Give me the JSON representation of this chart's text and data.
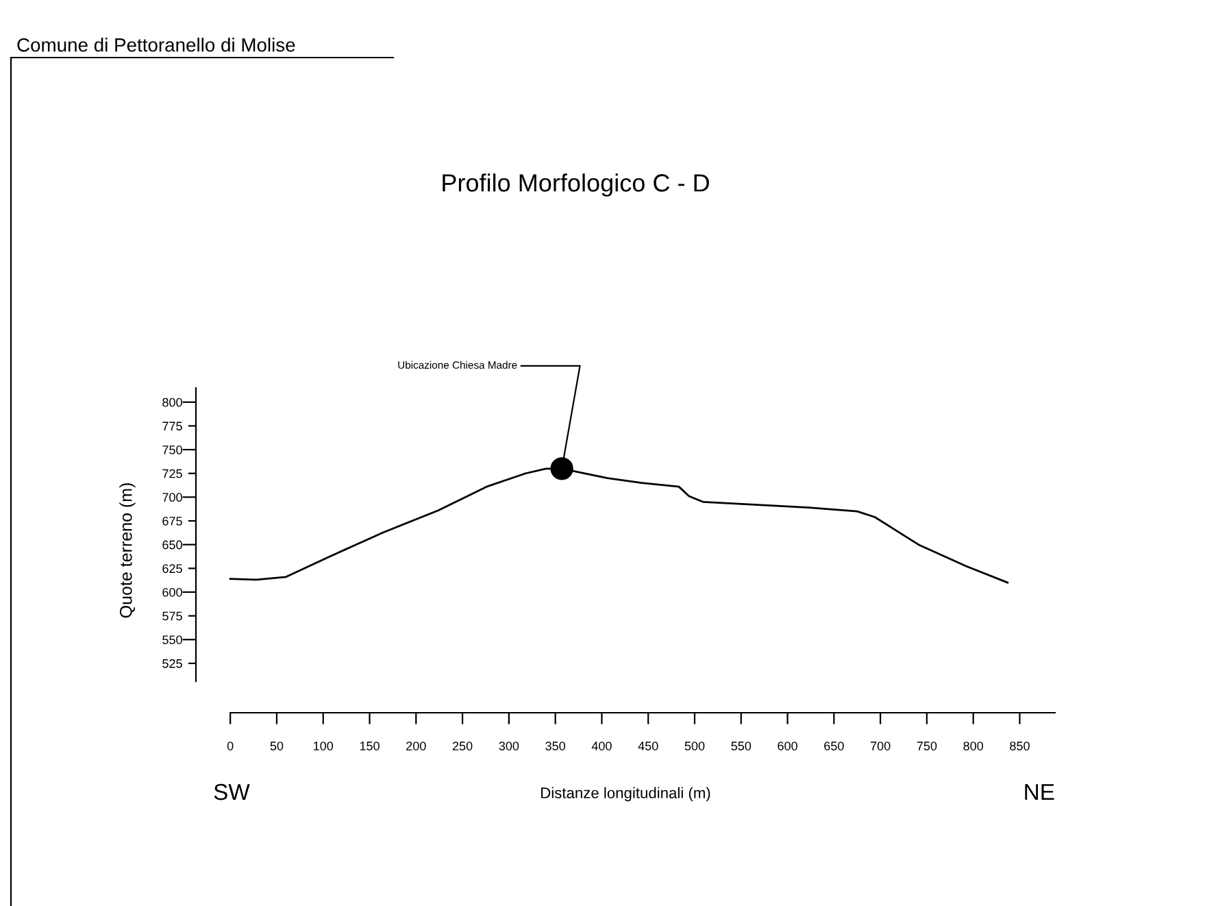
{
  "chart_data": {
    "type": "line",
    "title": "Profilo Morfologico C - D",
    "xlabel": "Distanze longitudinali (m)",
    "ylabel": "Quote terreno (m)",
    "x": [
      0,
      28,
      60,
      106,
      165,
      224,
      276,
      318,
      340,
      357,
      406,
      443,
      483,
      494,
      509,
      623,
      675,
      694,
      741,
      793,
      837
    ],
    "series": [
      {
        "color": "#000000",
        "values": [
          614,
          613,
          616,
          637,
          663,
          686,
          711,
          725,
          730,
          730,
          720,
          715,
          711,
          701,
          695,
          689,
          685,
          679,
          650,
          627,
          610
        ]
      }
    ],
    "xlim": [
      -37,
      888
    ],
    "ylim": [
      473,
      815
    ],
    "xticks": [
      0,
      50,
      100,
      150,
      200,
      250,
      300,
      350,
      400,
      450,
      500,
      550,
      600,
      650,
      700,
      750,
      800,
      850
    ],
    "yticks": [
      525,
      550,
      575,
      600,
      625,
      650,
      675,
      700,
      725,
      750,
      775,
      800
    ],
    "grid": false,
    "marker": "none",
    "line_style": "solid",
    "annotations": [
      "Comune di Pettoranello di Molise",
      "SW",
      "NE",
      {
        "text": "Ubicazione Chiesa Madre",
        "x": 357,
        "y": 730
      }
    ]
  }
}
